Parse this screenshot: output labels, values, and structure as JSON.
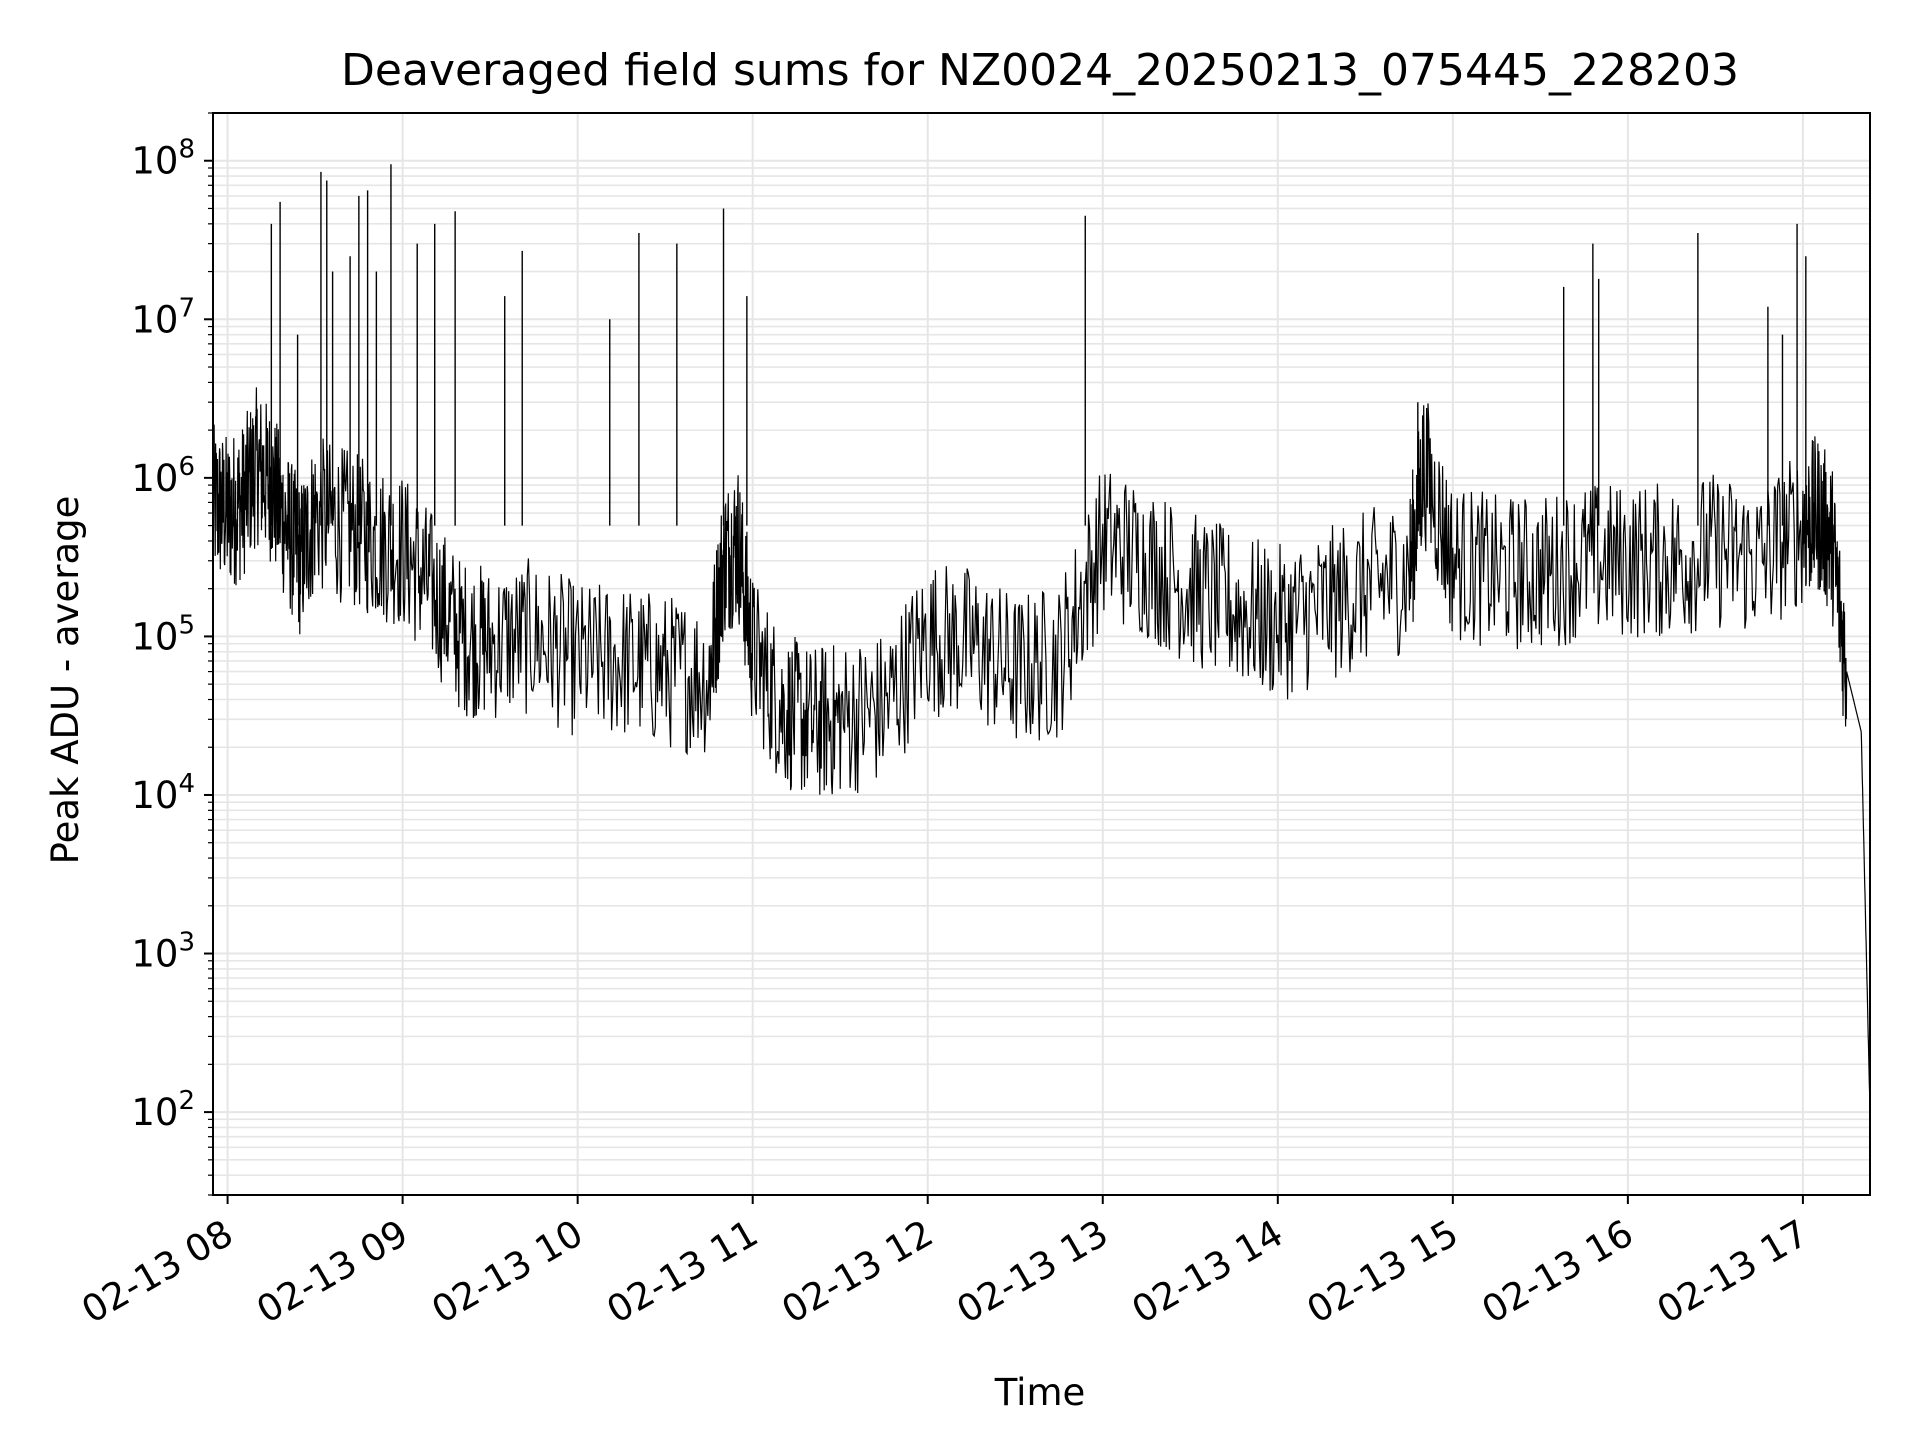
{
  "chart_data": {
    "type": "line",
    "title": "Deaveraged field sums for NZ0024_20250213_075445_228203",
    "xlabel": "Time",
    "ylabel": "Peak ADU - average",
    "yscale": "log",
    "ylim": [
      30,
      200000000
    ],
    "xlim": [
      "2025-02-13 07:55",
      "2025-02-13 17:23"
    ],
    "grid": true,
    "line_color": "#000000",
    "grid_color": "#e6e6e6",
    "x_ticks": [
      {
        "x": "2025-02-13 08:00",
        "label": "02-13 08"
      },
      {
        "x": "2025-02-13 09:00",
        "label": "02-13 09"
      },
      {
        "x": "2025-02-13 10:00",
        "label": "02-13 10"
      },
      {
        "x": "2025-02-13 11:00",
        "label": "02-13 11"
      },
      {
        "x": "2025-02-13 12:00",
        "label": "02-13 12"
      },
      {
        "x": "2025-02-13 13:00",
        "label": "02-13 13"
      },
      {
        "x": "2025-02-13 14:00",
        "label": "02-13 14"
      },
      {
        "x": "2025-02-13 15:00",
        "label": "02-13 15"
      },
      {
        "x": "2025-02-13 16:00",
        "label": "02-13 16"
      },
      {
        "x": "2025-02-13 17:00",
        "label": "02-13 17"
      }
    ],
    "y_ticks": [
      {
        "y": 100,
        "base": "10",
        "exp": "2"
      },
      {
        "y": 1000,
        "base": "10",
        "exp": "3"
      },
      {
        "y": 10000,
        "base": "10",
        "exp": "4"
      },
      {
        "y": 100000,
        "base": "10",
        "exp": "5"
      },
      {
        "y": 1000000,
        "base": "10",
        "exp": "6"
      },
      {
        "y": 10000000,
        "base": "10",
        "exp": "7"
      },
      {
        "y": 100000000,
        "base": "10",
        "exp": "8"
      }
    ],
    "series": [
      {
        "x": [
          "2025-02-13 07:55",
          "2025-02-13 08:00",
          "2025-02-13 08:05",
          "2025-02-13 08:10",
          "2025-02-13 08:15",
          "2025-02-13 08:20",
          "2025-02-13 08:25",
          "2025-02-13 08:30",
          "2025-02-13 08:40",
          "2025-02-13 08:50",
          "2025-02-13 09:00",
          "2025-02-13 09:10",
          "2025-02-13 09:20",
          "2025-02-13 09:30",
          "2025-02-13 09:45",
          "2025-02-13 10:00",
          "2025-02-13 10:15",
          "2025-02-13 10:30",
          "2025-02-13 10:45",
          "2025-02-13 10:50",
          "2025-02-13 10:55",
          "2025-02-13 11:00",
          "2025-02-13 11:10",
          "2025-02-13 11:20",
          "2025-02-13 11:30",
          "2025-02-13 11:45",
          "2025-02-13 12:00",
          "2025-02-13 12:15",
          "2025-02-13 12:30",
          "2025-02-13 12:45",
          "2025-02-13 13:00",
          "2025-02-13 13:15",
          "2025-02-13 13:30",
          "2025-02-13 13:45",
          "2025-02-13 14:00",
          "2025-02-13 14:15",
          "2025-02-13 14:30",
          "2025-02-13 14:45",
          "2025-02-13 14:50",
          "2025-02-13 15:00",
          "2025-02-13 15:15",
          "2025-02-13 15:30",
          "2025-02-13 15:45",
          "2025-02-13 16:00",
          "2025-02-13 16:15",
          "2025-02-13 16:30",
          "2025-02-13 16:45",
          "2025-02-13 17:00",
          "2025-02-13 17:05",
          "2025-02-13 17:10",
          "2025-02-13 17:15",
          "2025-02-13 17:20",
          "2025-02-13 17:23"
        ],
        "y": [
          700000,
          600000,
          700000,
          1200000,
          900000,
          500000,
          300000,
          600000,
          500000,
          400000,
          350000,
          200000,
          100000,
          90000,
          100000,
          70000,
          70000,
          60000,
          55000,
          300000,
          400000,
          80000,
          35000,
          28000,
          30000,
          35000,
          100000,
          90000,
          60000,
          70000,
          400000,
          300000,
          200000,
          150000,
          120000,
          150000,
          200000,
          250000,
          1200000,
          300000,
          250000,
          250000,
          300000,
          300000,
          300000,
          350000,
          300000,
          500000,
          600000,
          400000,
          60000,
          25000,
          100
        ]
      }
    ],
    "spikes": [
      {
        "x": "2025-02-13 08:15",
        "y": 40000000
      },
      {
        "x": "2025-02-13 08:18",
        "y": 55000000
      },
      {
        "x": "2025-02-13 08:24",
        "y": 8000000
      },
      {
        "x": "2025-02-13 08:32",
        "y": 85000000
      },
      {
        "x": "2025-02-13 08:34",
        "y": 75000000
      },
      {
        "x": "2025-02-13 08:36",
        "y": 20000000
      },
      {
        "x": "2025-02-13 08:42",
        "y": 25000000
      },
      {
        "x": "2025-02-13 08:45",
        "y": 60000000
      },
      {
        "x": "2025-02-13 08:48",
        "y": 65000000
      },
      {
        "x": "2025-02-13 08:51",
        "y": 20000000
      },
      {
        "x": "2025-02-13 08:56",
        "y": 95000000
      },
      {
        "x": "2025-02-13 09:05",
        "y": 30000000
      },
      {
        "x": "2025-02-13 09:11",
        "y": 40000000
      },
      {
        "x": "2025-02-13 09:18",
        "y": 48000000
      },
      {
        "x": "2025-02-13 09:35",
        "y": 14000000
      },
      {
        "x": "2025-02-13 09:41",
        "y": 27000000
      },
      {
        "x": "2025-02-13 10:11",
        "y": 10000000
      },
      {
        "x": "2025-02-13 10:21",
        "y": 35000000
      },
      {
        "x": "2025-02-13 10:34",
        "y": 30000000
      },
      {
        "x": "2025-02-13 10:50",
        "y": 50000000
      },
      {
        "x": "2025-02-13 10:58",
        "y": 14000000
      },
      {
        "x": "2025-02-13 12:54",
        "y": 45000000
      },
      {
        "x": "2025-02-13 14:48",
        "y": 3000000
      },
      {
        "x": "2025-02-13 15:38",
        "y": 16000000
      },
      {
        "x": "2025-02-13 15:48",
        "y": 30000000
      },
      {
        "x": "2025-02-13 15:50",
        "y": 18000000
      },
      {
        "x": "2025-02-13 16:24",
        "y": 35000000
      },
      {
        "x": "2025-02-13 16:48",
        "y": 12000000
      },
      {
        "x": "2025-02-13 16:53",
        "y": 8000000
      },
      {
        "x": "2025-02-13 16:58",
        "y": 40000000
      },
      {
        "x": "2025-02-13 17:01",
        "y": 25000000
      }
    ]
  }
}
